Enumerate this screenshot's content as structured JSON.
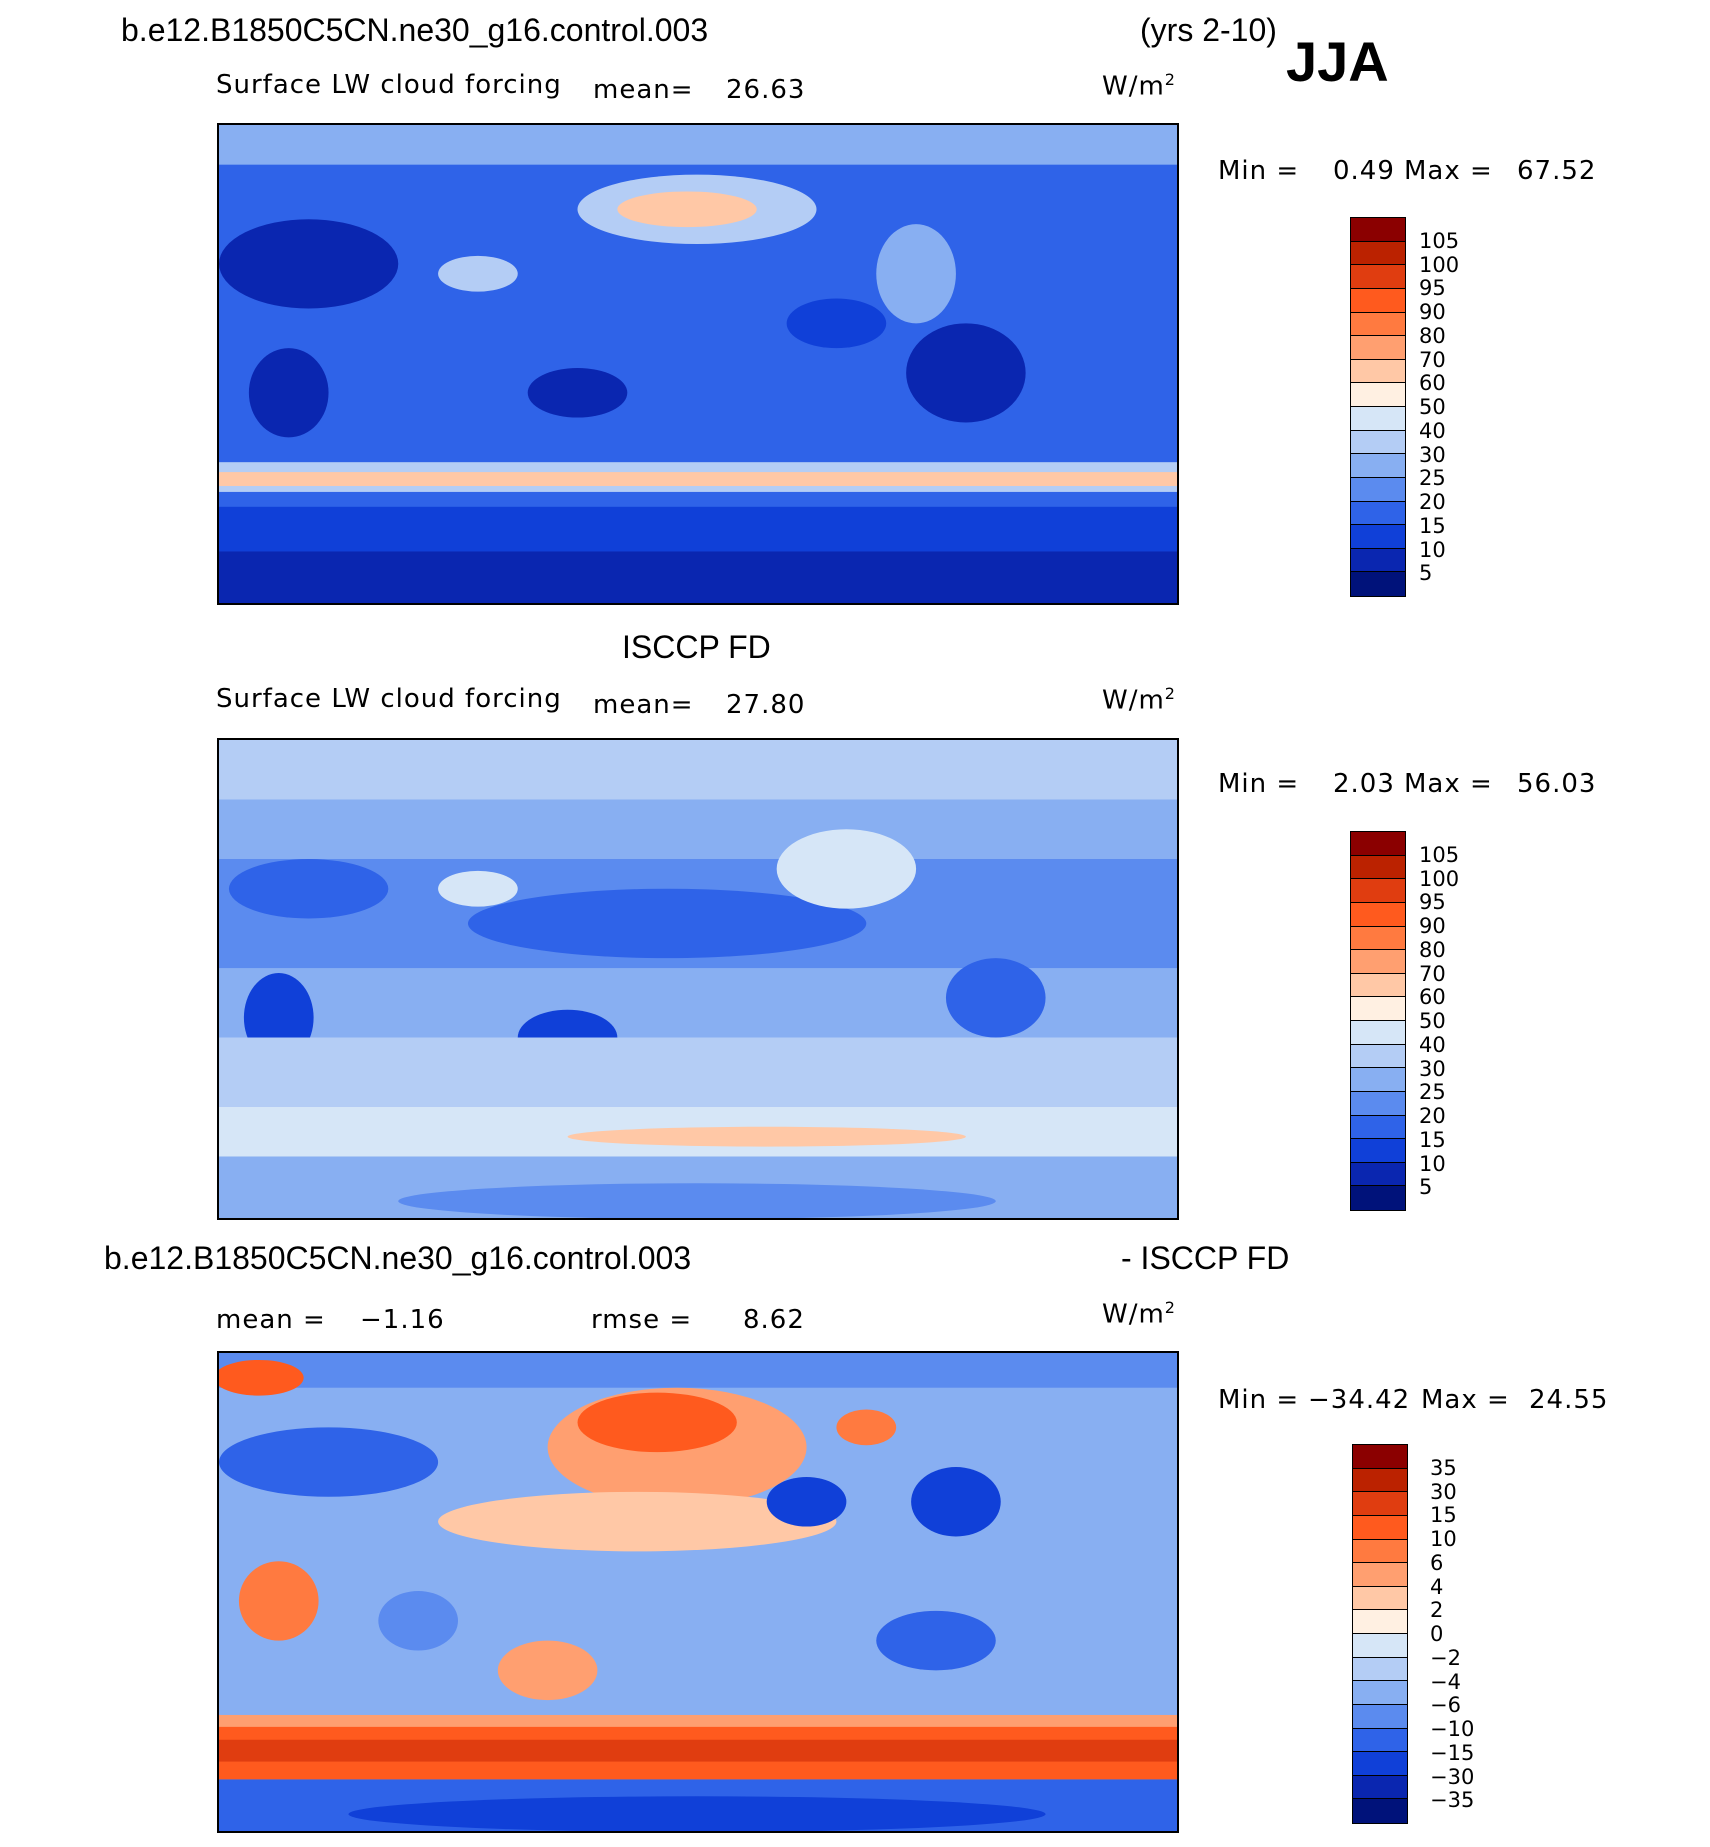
{
  "header": {
    "case_name": "b.e12.B1850C5CN.ne30_g16.control.003",
    "years": "(yrs 2-10)",
    "season": "JJA"
  },
  "panel1": {
    "variable": "Surface LW cloud forcing",
    "mean_label": "mean=",
    "mean_value": "26.63",
    "units_base": "W/m",
    "units_exp": "2",
    "min_label": "Min =",
    "min_value": "0.49",
    "max_label": "Max =",
    "max_value": "67.52"
  },
  "panel2": {
    "title": "ISCCP FD",
    "variable": "Surface LW cloud forcing",
    "mean_label": "mean=",
    "mean_value": "27.80",
    "units_base": "W/m",
    "units_exp": "2",
    "min_label": "Min =",
    "min_value": "2.03",
    "max_label": "Max =",
    "max_value": "56.03"
  },
  "panel3": {
    "title_left": "b.e12.B1850C5CN.ne30_g16.control.003",
    "title_right": "- ISCCP FD",
    "mean_label": "mean =",
    "mean_value": "−1.16",
    "rmse_label": "rmse =",
    "rmse_value": "8.62",
    "units_base": "W/m",
    "units_exp": "2",
    "min_label": "Min =",
    "min_value": "−34.42",
    "max_label": "Max =",
    "max_value": "24.55"
  },
  "colorbar_abs": {
    "labels": [
      "105",
      "100",
      "95",
      "90",
      "80",
      "70",
      "60",
      "50",
      "40",
      "30",
      "25",
      "20",
      "15",
      "10",
      "5"
    ],
    "colors": [
      "#8b0000",
      "#bb2200",
      "#e03d10",
      "#ff5a1e",
      "#ff7a40",
      "#ff9f70",
      "#ffc8a6",
      "#fff0e2",
      "#d6e6f7",
      "#b4cdf5",
      "#88aff2",
      "#5b8bef",
      "#2f63e8",
      "#1040d8",
      "#0a26b0",
      "#00127a"
    ]
  },
  "colorbar_diff": {
    "labels": [
      "35",
      "30",
      "15",
      "10",
      "6",
      "4",
      "2",
      "0",
      "−2",
      "−4",
      "−6",
      "−10",
      "−15",
      "−30",
      "−35"
    ],
    "colors": [
      "#8b0000",
      "#bb2200",
      "#e03d10",
      "#ff5a1e",
      "#ff7a40",
      "#ff9f70",
      "#ffc8a6",
      "#fff0e2",
      "#d6e6f7",
      "#b4cdf5",
      "#88aff2",
      "#5b8bef",
      "#2f63e8",
      "#1040d8",
      "#0a26b0",
      "#00127a"
    ]
  }
}
